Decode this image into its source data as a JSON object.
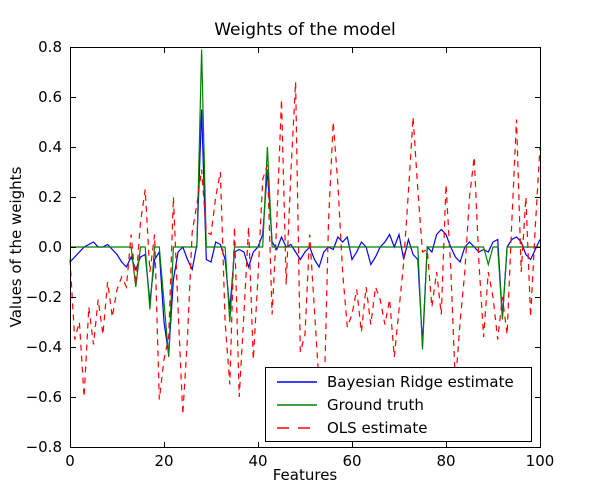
{
  "figure": {
    "background": "#ffffff",
    "frame_color": "#000000"
  },
  "chart_data": {
    "type": "line",
    "title": "Weights of the model",
    "xlabel": "Features",
    "ylabel": "Values of the weights",
    "xlim": [
      0,
      100
    ],
    "ylim": [
      -0.8,
      0.8
    ],
    "xticks": [
      0,
      20,
      40,
      60,
      80,
      100
    ],
    "yticks": [
      -0.8,
      -0.6,
      -0.4,
      -0.2,
      0.0,
      0.2,
      0.4,
      0.6,
      0.8
    ],
    "grid": false,
    "legend_location": "lower right inside axes",
    "x": [
      0,
      1,
      2,
      3,
      4,
      5,
      6,
      7,
      8,
      9,
      10,
      11,
      12,
      13,
      14,
      15,
      16,
      17,
      18,
      19,
      20,
      21,
      22,
      23,
      24,
      25,
      26,
      27,
      28,
      29,
      30,
      31,
      32,
      33,
      34,
      35,
      36,
      37,
      38,
      39,
      40,
      41,
      42,
      43,
      44,
      45,
      46,
      47,
      48,
      49,
      50,
      51,
      52,
      53,
      54,
      55,
      56,
      57,
      58,
      59,
      60,
      61,
      62,
      63,
      64,
      65,
      66,
      67,
      68,
      69,
      70,
      71,
      72,
      73,
      74,
      75,
      76,
      77,
      78,
      79,
      80,
      81,
      82,
      83,
      84,
      85,
      86,
      87,
      88,
      89,
      90,
      91,
      92,
      93,
      94,
      95,
      96,
      97,
      98,
      99,
      100
    ],
    "series": [
      {
        "name": "Bayesian Ridge estimate",
        "color": "#0000ff",
        "style": "solid",
        "values": [
          -0.06,
          -0.04,
          -0.02,
          0.0,
          0.01,
          0.02,
          0.0,
          0.0,
          0.01,
          -0.01,
          -0.03,
          -0.06,
          -0.08,
          -0.04,
          -0.09,
          -0.04,
          -0.03,
          -0.22,
          -0.05,
          -0.02,
          -0.3,
          -0.43,
          -0.13,
          -0.02,
          0.0,
          -0.05,
          -0.09,
          0.01,
          0.55,
          -0.05,
          -0.06,
          0.02,
          0.01,
          -0.05,
          -0.25,
          -0.02,
          -0.01,
          -0.02,
          -0.08,
          -0.02,
          0.0,
          0.05,
          0.31,
          0.02,
          -0.01,
          0.04,
          0.0,
          0.01,
          -0.02,
          -0.05,
          -0.02,
          0.0,
          -0.05,
          -0.08,
          -0.02,
          0.0,
          -0.01,
          0.04,
          0.02,
          0.04,
          -0.05,
          -0.02,
          0.02,
          0.0,
          -0.07,
          -0.04,
          0.0,
          0.02,
          0.05,
          0.0,
          0.05,
          -0.05,
          0.03,
          -0.03,
          -0.05,
          -0.39,
          0.0,
          -0.02,
          0.05,
          0.07,
          0.05,
          0.0,
          -0.04,
          -0.06,
          0.0,
          0.02,
          0.0,
          -0.02,
          -0.01,
          -0.02,
          0.02,
          0.03,
          -0.28,
          0.0,
          0.03,
          0.04,
          0.02,
          -0.03,
          -0.05,
          -0.01,
          0.03
        ]
      },
      {
        "name": "Ground truth",
        "color": "#008000",
        "style": "solid",
        "values": [
          0,
          0,
          0,
          0,
          0,
          0,
          0,
          0,
          0,
          0,
          0,
          0,
          0,
          0,
          -0.16,
          0,
          0,
          -0.25,
          0,
          0,
          -0.22,
          -0.44,
          0,
          0,
          0,
          0,
          0,
          0,
          0.79,
          0,
          0,
          0,
          0,
          0,
          -0.3,
          0,
          0,
          0,
          0,
          0,
          0,
          0,
          0.4,
          0,
          0,
          0,
          0,
          0,
          0,
          0,
          0,
          0,
          0,
          0,
          0,
          0,
          0,
          0,
          0,
          0,
          0,
          0,
          0,
          0,
          0,
          0,
          0,
          0,
          0,
          0,
          0,
          0,
          0,
          0,
          0,
          -0.41,
          0,
          0,
          0,
          0,
          0,
          0,
          0,
          0,
          0,
          0,
          0,
          0,
          0,
          -0.07,
          0,
          0,
          -0.29,
          0,
          0,
          0,
          0,
          0,
          0,
          0,
          0
        ]
      },
      {
        "name": "OLS estimate",
        "color": "#ff0000",
        "style": "dashed",
        "values": [
          -0.05,
          -0.37,
          -0.3,
          -0.6,
          -0.24,
          -0.39,
          -0.21,
          -0.35,
          -0.14,
          -0.28,
          -0.17,
          -0.12,
          -0.16,
          0.05,
          -0.15,
          0.1,
          0.23,
          -0.1,
          0.05,
          -0.61,
          -0.45,
          -0.36,
          0.2,
          -0.25,
          -0.67,
          -0.36,
          0.06,
          0.17,
          0.31,
          0.06,
          0.05,
          0.2,
          0.3,
          -0.3,
          -0.55,
          0.08,
          -0.6,
          -0.27,
          0.08,
          -0.45,
          -0.12,
          0.27,
          0.33,
          -0.27,
          0.1,
          0.59,
          -0.15,
          0.3,
          0.66,
          -0.42,
          -0.35,
          0.05,
          -0.25,
          -0.55,
          -0.66,
          0.1,
          0.5,
          0.25,
          -0.1,
          -0.32,
          -0.27,
          -0.17,
          -0.34,
          -0.16,
          -0.31,
          -0.16,
          -0.21,
          -0.31,
          -0.21,
          -0.44,
          -0.25,
          -0.06,
          0.22,
          0.52,
          0.23,
          -0.02,
          -0.01,
          -0.24,
          -0.1,
          -0.27,
          0.25,
          -0.08,
          -0.55,
          -0.3,
          -0.1,
          0.2,
          0.36,
          -0.06,
          -0.36,
          -0.1,
          -0.2,
          -0.37,
          -0.2,
          -0.35,
          0.1,
          0.51,
          -0.1,
          0.2,
          -0.28,
          0.08,
          0.4
        ]
      }
    ]
  }
}
